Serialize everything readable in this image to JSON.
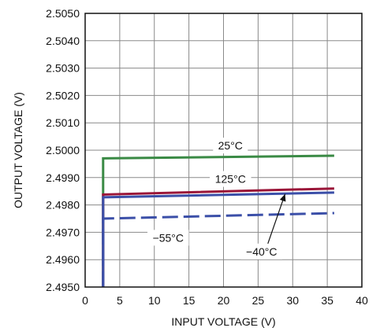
{
  "chart_data": {
    "type": "line",
    "title": "",
    "xlabel": "INPUT VOLTAGE (V)",
    "ylabel": "OUTPUT VOLTAGE (V)",
    "xlim": [
      0,
      40
    ],
    "ylim": [
      2.495,
      2.505
    ],
    "x_ticks": [
      0,
      5,
      10,
      15,
      20,
      25,
      30,
      35,
      40
    ],
    "y_ticks": [
      2.495,
      2.496,
      2.497,
      2.498,
      2.499,
      2.5,
      2.501,
      2.502,
      2.503,
      2.504,
      2.505
    ],
    "x_tick_labels": [
      "0",
      "5",
      "10",
      "15",
      "20",
      "25",
      "30",
      "35",
      "40"
    ],
    "y_tick_labels": [
      "2.4950",
      "2.4960",
      "2.4970",
      "2.4980",
      "2.4990",
      "2.5000",
      "2.5010",
      "2.5020",
      "2.5030",
      "2.5040",
      "2.5050"
    ],
    "grid": true,
    "series": [
      {
        "name": "25°C",
        "color": "#3a8a45",
        "dash": false,
        "points": [
          [
            2.6,
            2.495
          ],
          [
            2.6,
            2.4997
          ],
          [
            36,
            2.4998
          ]
        ]
      },
      {
        "name": "125°C",
        "color": "#9a1538",
        "dash": false,
        "points": [
          [
            2.6,
            2.495
          ],
          [
            2.6,
            2.49838
          ],
          [
            36,
            2.4986
          ]
        ]
      },
      {
        "name": "−40°C",
        "color": "#3b4fa8",
        "dash": false,
        "points": [
          [
            2.6,
            2.495
          ],
          [
            2.6,
            2.49828
          ],
          [
            36,
            2.49845
          ]
        ]
      },
      {
        "name": "−55°C",
        "color": "#3b4fa8",
        "dash": true,
        "points": [
          [
            2.6,
            2.495
          ],
          [
            2.6,
            2.4975
          ],
          [
            36,
            2.4977
          ]
        ]
      }
    ],
    "annotations": [
      {
        "series": 0,
        "text": "25°C",
        "x": 21,
        "y": 2.50017
      },
      {
        "series": 1,
        "text": "125°C",
        "x": 21,
        "y": 2.49895
      },
      {
        "series": 3,
        "text": "−55°C",
        "x": 12,
        "y": 2.4968
      },
      {
        "series": 2,
        "text": "−40°C",
        "x": 25.5,
        "y": 2.4963,
        "arrow_to": [
          28.9,
          2.4984
        ]
      }
    ]
  }
}
